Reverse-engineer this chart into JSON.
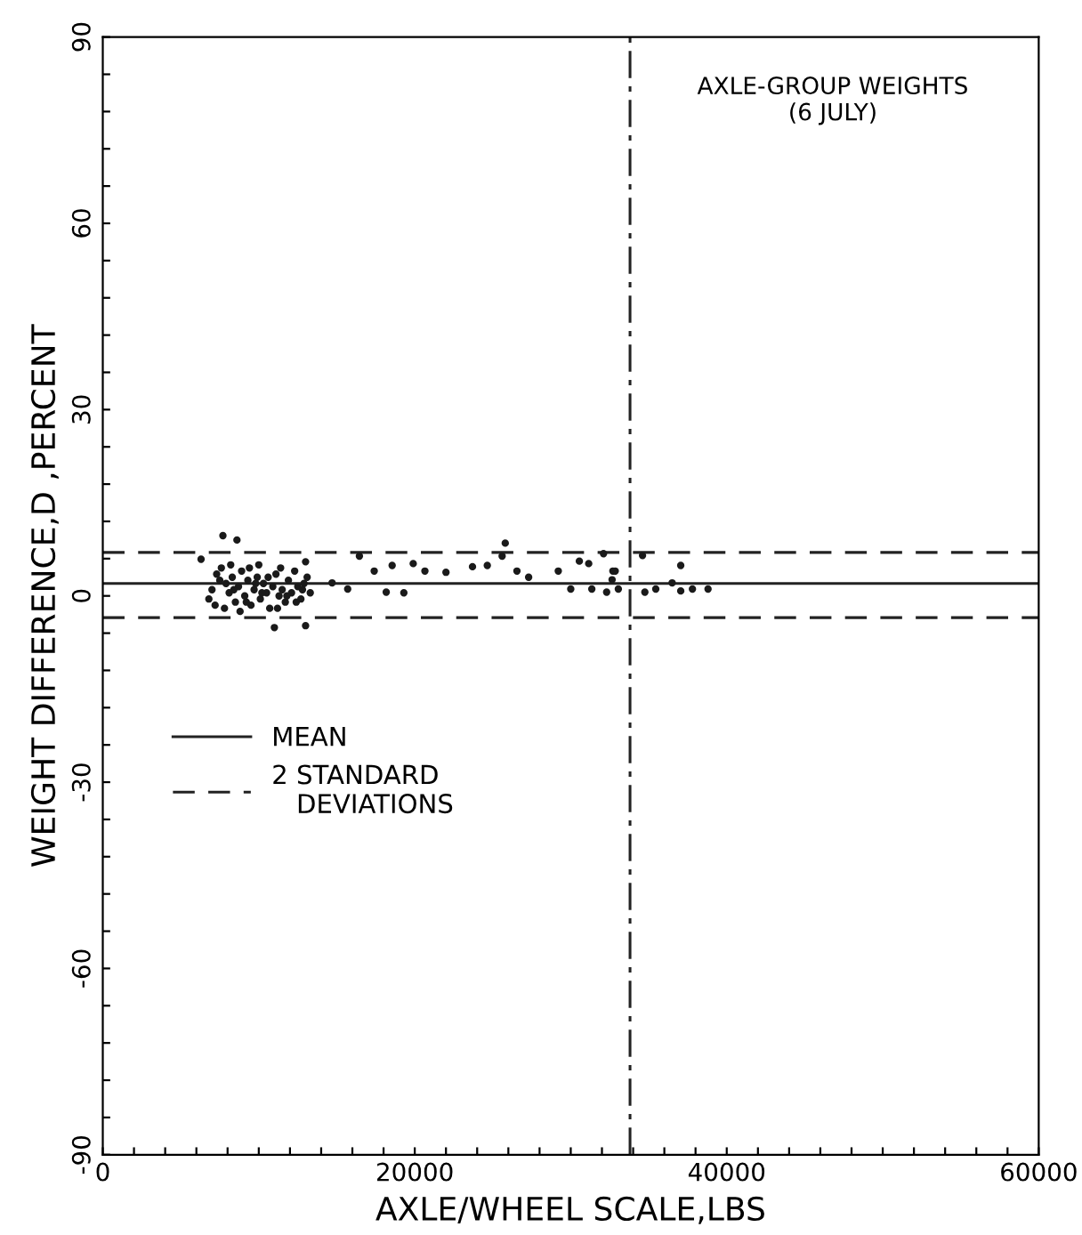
{
  "chart_data": {
    "type": "scatter",
    "xlabel": "AXLE/WHEEL SCALE,LBS",
    "ylabel": "WEIGHT DIFFERENCE,D ,PERCENT",
    "annotations": [
      "AXLE-GROUP WEIGHTS\n(6 JULY)"
    ],
    "xlim": [
      0,
      60000
    ],
    "ylim": [
      -90,
      90
    ],
    "xticks": [
      0,
      {
        "value": 2000,
        "label": null
      },
      {
        "value": 4000,
        "label": null
      },
      {
        "value": 6000,
        "label": null
      },
      {
        "value": 8000,
        "label": null
      },
      {
        "value": 10000,
        "label": null
      },
      {
        "value": 12000,
        "label": null
      },
      {
        "value": 14000,
        "label": null
      },
      {
        "value": 16000,
        "label": null
      },
      {
        "value": 18000,
        "label": null
      },
      20000,
      {
        "value": 22000,
        "label": null
      },
      {
        "value": 24000,
        "label": null
      },
      {
        "value": 26000,
        "label": null
      },
      {
        "value": 28000,
        "label": null
      },
      {
        "value": 30000,
        "label": null
      },
      {
        "value": 32000,
        "label": null
      },
      {
        "value": 34000,
        "label": null
      },
      {
        "value": 36000,
        "label": null
      },
      {
        "value": 38000,
        "label": null
      },
      40000,
      {
        "value": 42000,
        "label": null
      },
      {
        "value": 44000,
        "label": null
      },
      {
        "value": 46000,
        "label": null
      },
      {
        "value": 48000,
        "label": null
      },
      {
        "value": 50000,
        "label": null
      },
      {
        "value": 52000,
        "label": null
      },
      {
        "value": 54000,
        "label": null
      },
      {
        "value": 56000,
        "label": null
      },
      {
        "value": 58000,
        "label": null
      },
      60000
    ],
    "yticks": [
      -90,
      {
        "value": -84,
        "label": null
      },
      {
        "value": -78,
        "label": null
      },
      {
        "value": -72,
        "label": null
      },
      {
        "value": -66,
        "label": null
      },
      -60,
      {
        "value": -54,
        "label": null
      },
      {
        "value": -48,
        "label": null
      },
      {
        "value": -42,
        "label": null
      },
      {
        "value": -36,
        "label": null
      },
      -30,
      {
        "value": -24,
        "label": null
      },
      {
        "value": -18,
        "label": null
      },
      {
        "value": -12,
        "label": null
      },
      {
        "value": -6,
        "label": null
      },
      0,
      {
        "value": 6,
        "label": null
      },
      {
        "value": 12,
        "label": null
      },
      {
        "value": 18,
        "label": null
      },
      {
        "value": 24,
        "label": null
      },
      30,
      {
        "value": 36,
        "label": null
      },
      {
        "value": 42,
        "label": null
      },
      {
        "value": 48,
        "label": null
      },
      {
        "value": 54,
        "label": null
      },
      60,
      {
        "value": 66,
        "label": null
      },
      {
        "value": 72,
        "label": null
      },
      {
        "value": 78,
        "label": null
      },
      {
        "value": 84,
        "label": null
      },
      90
    ],
    "grid": false,
    "marker": "circle",
    "legend": "bottom left",
    "ref_lines": [
      {
        "axis": "y",
        "value": 2,
        "label": "MEAN",
        "line_style": "solid",
        "color": "#222222"
      },
      {
        "axis": "y",
        "value": 7,
        "label": "2 STANDARD\n   DEVIATIONS",
        "line_style": "dashed",
        "color": "#222222"
      },
      {
        "axis": "y",
        "value": -3.5,
        "label": null,
        "line_style": "dashed",
        "color": "#222222"
      },
      {
        "axis": "x",
        "value": 33800,
        "label": null,
        "line_style": "dashdot",
        "color": "#222222"
      }
    ],
    "series": [
      {
        "color": "#1a1a1a",
        "x": [
          7700,
          8600,
          11000,
          13000,
          6300,
          7000,
          7300,
          7600,
          7900,
          8100,
          8300,
          8500,
          8700,
          8900,
          9100,
          9300,
          9500,
          9700,
          9900,
          10100,
          10300,
          10500,
          10700,
          10900,
          11100,
          11300,
          11500,
          11700,
          11900,
          12100,
          12300,
          12500,
          12700,
          12900,
          13100,
          13300,
          7200,
          7800,
          8200,
          8800,
          9400,
          10000,
          10600,
          11200,
          11800,
          12400,
          13000,
          7500,
          8400,
          9200,
          10200,
          6800,
          9800,
          11400,
          12800,
          14700,
          15700,
          16450,
          17400,
          18170,
          19300,
          18550,
          19900,
          20650,
          22000,
          23700,
          24650,
          25800,
          25600,
          26550,
          27300,
          29200,
          30000,
          30550,
          31150,
          31350,
          32300,
          32850,
          32650,
          33050,
          32100,
          32700,
          34600,
          37050,
          34750,
          35450,
          36500,
          37050,
          37800,
          38800
        ],
        "values": [
          9.7,
          9.0,
          -5.1,
          -4.8,
          5.9,
          1.0,
          3.5,
          4.5,
          2.0,
          0.5,
          3.0,
          -1.0,
          1.5,
          4.0,
          0.0,
          2.5,
          -1.5,
          1.0,
          3.0,
          -0.5,
          2.0,
          0.5,
          -2.0,
          1.5,
          3.5,
          0.0,
          1.0,
          -1.0,
          2.5,
          0.5,
          4.0,
          1.5,
          -0.5,
          2.0,
          3.0,
          0.5,
          -1.5,
          -2.0,
          5.0,
          -2.5,
          4.5,
          5.0,
          3.0,
          -2.0,
          0.0,
          -1.0,
          5.5,
          2.5,
          1.0,
          -1.0,
          0.5,
          -0.5,
          2.0,
          4.5,
          1.0,
          2.1,
          1.1,
          6.4,
          4.0,
          0.6,
          0.5,
          4.9,
          5.2,
          4.0,
          3.8,
          4.7,
          4.9,
          8.5,
          6.4,
          4.0,
          3.0,
          4.0,
          1.1,
          5.6,
          5.2,
          1.1,
          0.6,
          4.0,
          2.6,
          1.1,
          6.8,
          4.0,
          6.5,
          4.9,
          0.6,
          1.1,
          2.1,
          0.8,
          1.1,
          1.1
        ]
      }
    ]
  }
}
